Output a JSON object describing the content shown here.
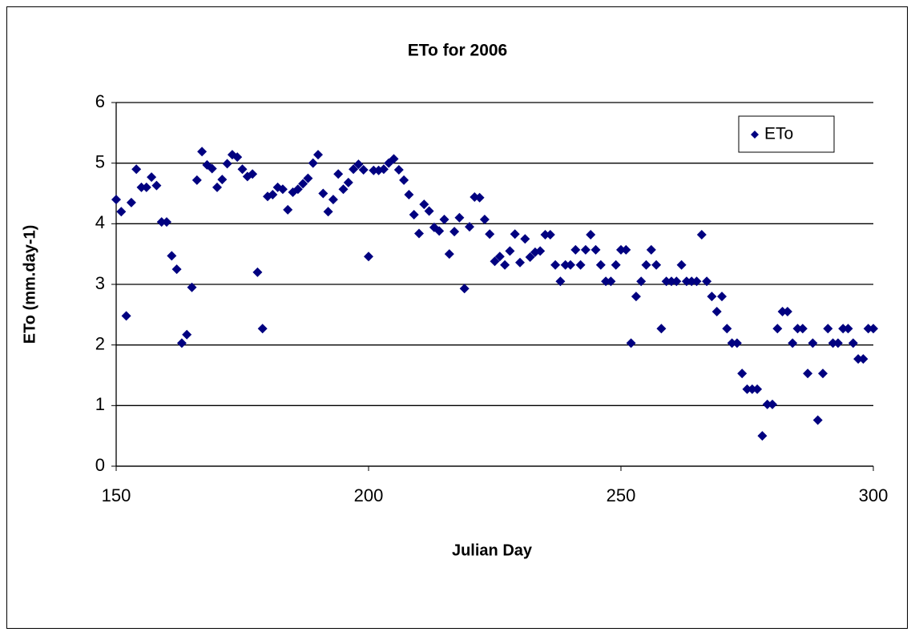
{
  "chart_data": {
    "type": "scatter",
    "title": "ETo for 2006",
    "x_label": "Julian Day",
    "y_label": "ETo (mm.day-1)",
    "series": [
      {
        "name": "ETo",
        "color": "#000080",
        "x": [
          150,
          151,
          152,
          153,
          154,
          155,
          156,
          157,
          158,
          159,
          160,
          161,
          162,
          163,
          164,
          165,
          166,
          167,
          168,
          169,
          170,
          171,
          172,
          173,
          174,
          175,
          176,
          177,
          178,
          179,
          180,
          181,
          182,
          183,
          184,
          185,
          186,
          187,
          188,
          189,
          190,
          191,
          192,
          193,
          194,
          195,
          196,
          197,
          198,
          199,
          200,
          201,
          202,
          203,
          204,
          205,
          206,
          207,
          208,
          209,
          210,
          211,
          212,
          213,
          214,
          215,
          216,
          217,
          218,
          219,
          220,
          221,
          222,
          223,
          224,
          225,
          226,
          227,
          228,
          229,
          230,
          231,
          232,
          233,
          234,
          235,
          236,
          237,
          238,
          239,
          240,
          241,
          242,
          243,
          244,
          245,
          246,
          247,
          248,
          249,
          250,
          251,
          252,
          253,
          254,
          255,
          256,
          257,
          258,
          259,
          260,
          261,
          262,
          263,
          264,
          265,
          266,
          267,
          268,
          269,
          270,
          271,
          272,
          273,
          274,
          275,
          276,
          277,
          278,
          279,
          280,
          281,
          282,
          283,
          284,
          285,
          286,
          287,
          288,
          289,
          290,
          291,
          292,
          293,
          294,
          295,
          296,
          297,
          298,
          299,
          300
        ],
        "values": [
          4.4,
          4.2,
          2.48,
          4.35,
          4.9,
          4.6,
          4.6,
          4.77,
          4.63,
          4.03,
          4.03,
          3.47,
          3.25,
          2.03,
          2.17,
          2.95,
          4.72,
          5.19,
          4.97,
          4.91,
          4.6,
          4.73,
          4.99,
          5.14,
          5.1,
          4.9,
          4.78,
          4.82,
          3.2,
          2.27,
          4.45,
          4.48,
          4.6,
          4.57,
          4.23,
          4.52,
          4.57,
          4.66,
          4.75,
          5.0,
          5.14,
          4.5,
          4.2,
          4.4,
          4.82,
          4.57,
          4.68,
          4.9,
          4.98,
          4.89,
          3.46,
          4.88,
          4.88,
          4.9,
          5.0,
          5.07,
          4.89,
          4.72,
          4.48,
          4.15,
          3.84,
          4.32,
          4.21,
          3.94,
          3.88,
          4.07,
          3.5,
          3.87,
          4.1,
          2.93,
          3.95,
          4.44,
          4.43,
          4.07,
          3.83,
          3.38,
          3.46,
          3.32,
          3.55,
          3.83,
          3.36,
          3.75,
          3.45,
          3.53,
          3.55,
          3.82,
          3.82,
          3.32,
          3.05,
          3.32,
          3.32,
          3.57,
          3.32,
          3.57,
          3.82,
          3.57,
          3.32,
          3.05,
          3.05,
          3.32,
          3.57,
          3.57,
          2.03,
          2.8,
          3.05,
          3.32,
          3.57,
          3.32,
          2.27,
          3.05,
          3.05,
          3.05,
          3.32,
          3.05,
          3.05,
          3.05,
          3.82,
          3.05,
          2.8,
          2.55,
          2.8,
          2.27,
          2.03,
          2.03,
          1.53,
          1.27,
          1.27,
          1.27,
          0.5,
          1.02,
          1.02,
          2.27,
          2.55,
          2.55,
          2.03,
          2.27,
          2.27,
          1.53,
          2.03,
          0.76,
          1.53,
          2.27,
          2.03,
          2.03,
          2.27,
          2.27,
          2.03,
          1.77,
          1.77,
          2.27,
          2.27
        ]
      }
    ],
    "xlim": [
      150,
      300
    ],
    "xticks": [
      150,
      200,
      250,
      300
    ],
    "ylim": [
      0,
      6
    ],
    "yticks": [
      0,
      1,
      2,
      3,
      4,
      5,
      6
    ],
    "grid": true,
    "legend_position": "upper right"
  }
}
